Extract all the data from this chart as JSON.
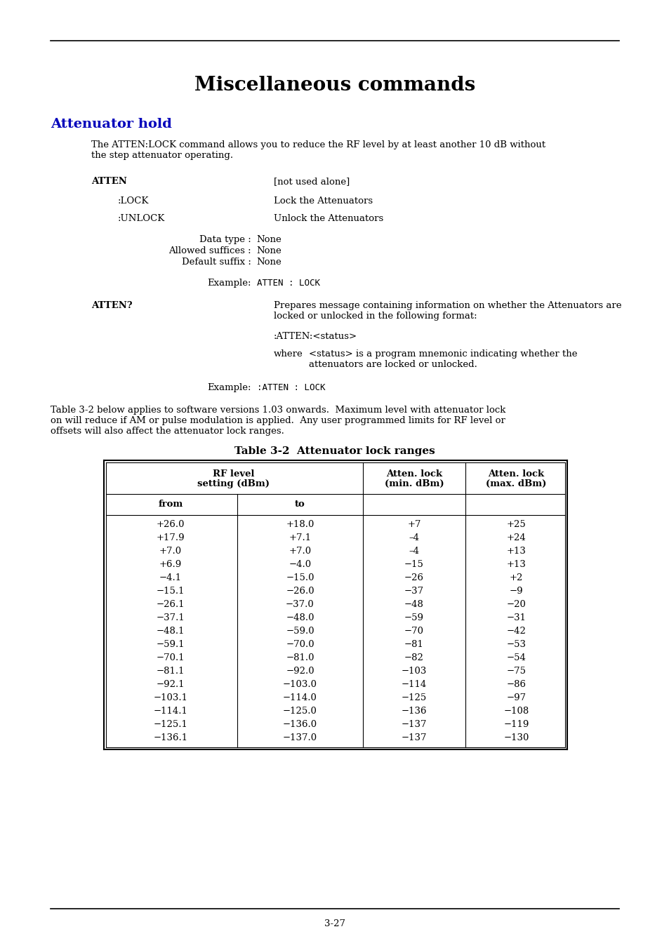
{
  "page_title": "Miscellaneous commands",
  "section_title": "Attenuator hold",
  "section_title_color": "#0000BB",
  "page_number": "3-27",
  "table_title": "Table 3-2  Attenuator lock ranges",
  "table_data": [
    [
      "+26.0",
      "+18.0",
      "+7",
      "+25"
    ],
    [
      "+17.9",
      "+7.1",
      "–4",
      "+24"
    ],
    [
      "+7.0",
      "+7.0",
      "–4",
      "+13"
    ],
    [
      "+6.9",
      "−4.0",
      "−15",
      "+13"
    ],
    [
      "−4.1",
      "−15.0",
      "−26",
      "+2"
    ],
    [
      "−15.1",
      "−26.0",
      "−37",
      "−9"
    ],
    [
      "−26.1",
      "−37.0",
      "−48",
      "−20"
    ],
    [
      "−37.1",
      "−48.0",
      "−59",
      "−31"
    ],
    [
      "−48.1",
      "−59.0",
      "−70",
      "−42"
    ],
    [
      "−59.1",
      "−70.0",
      "−81",
      "−53"
    ],
    [
      "−70.1",
      "−81.0",
      "−82",
      "−54"
    ],
    [
      "−81.1",
      "−92.0",
      "−103",
      "−75"
    ],
    [
      "−92.1",
      "−103.0",
      "−114",
      "−86"
    ],
    [
      "−103.1",
      "−114.0",
      "−125",
      "−97"
    ],
    [
      "−114.1",
      "−125.0",
      "−136",
      "−108"
    ],
    [
      "−125.1",
      "−136.0",
      "−137",
      "−119"
    ],
    [
      "−136.1",
      "−137.0",
      "−137",
      "−130"
    ]
  ],
  "bg_color": "#ffffff"
}
